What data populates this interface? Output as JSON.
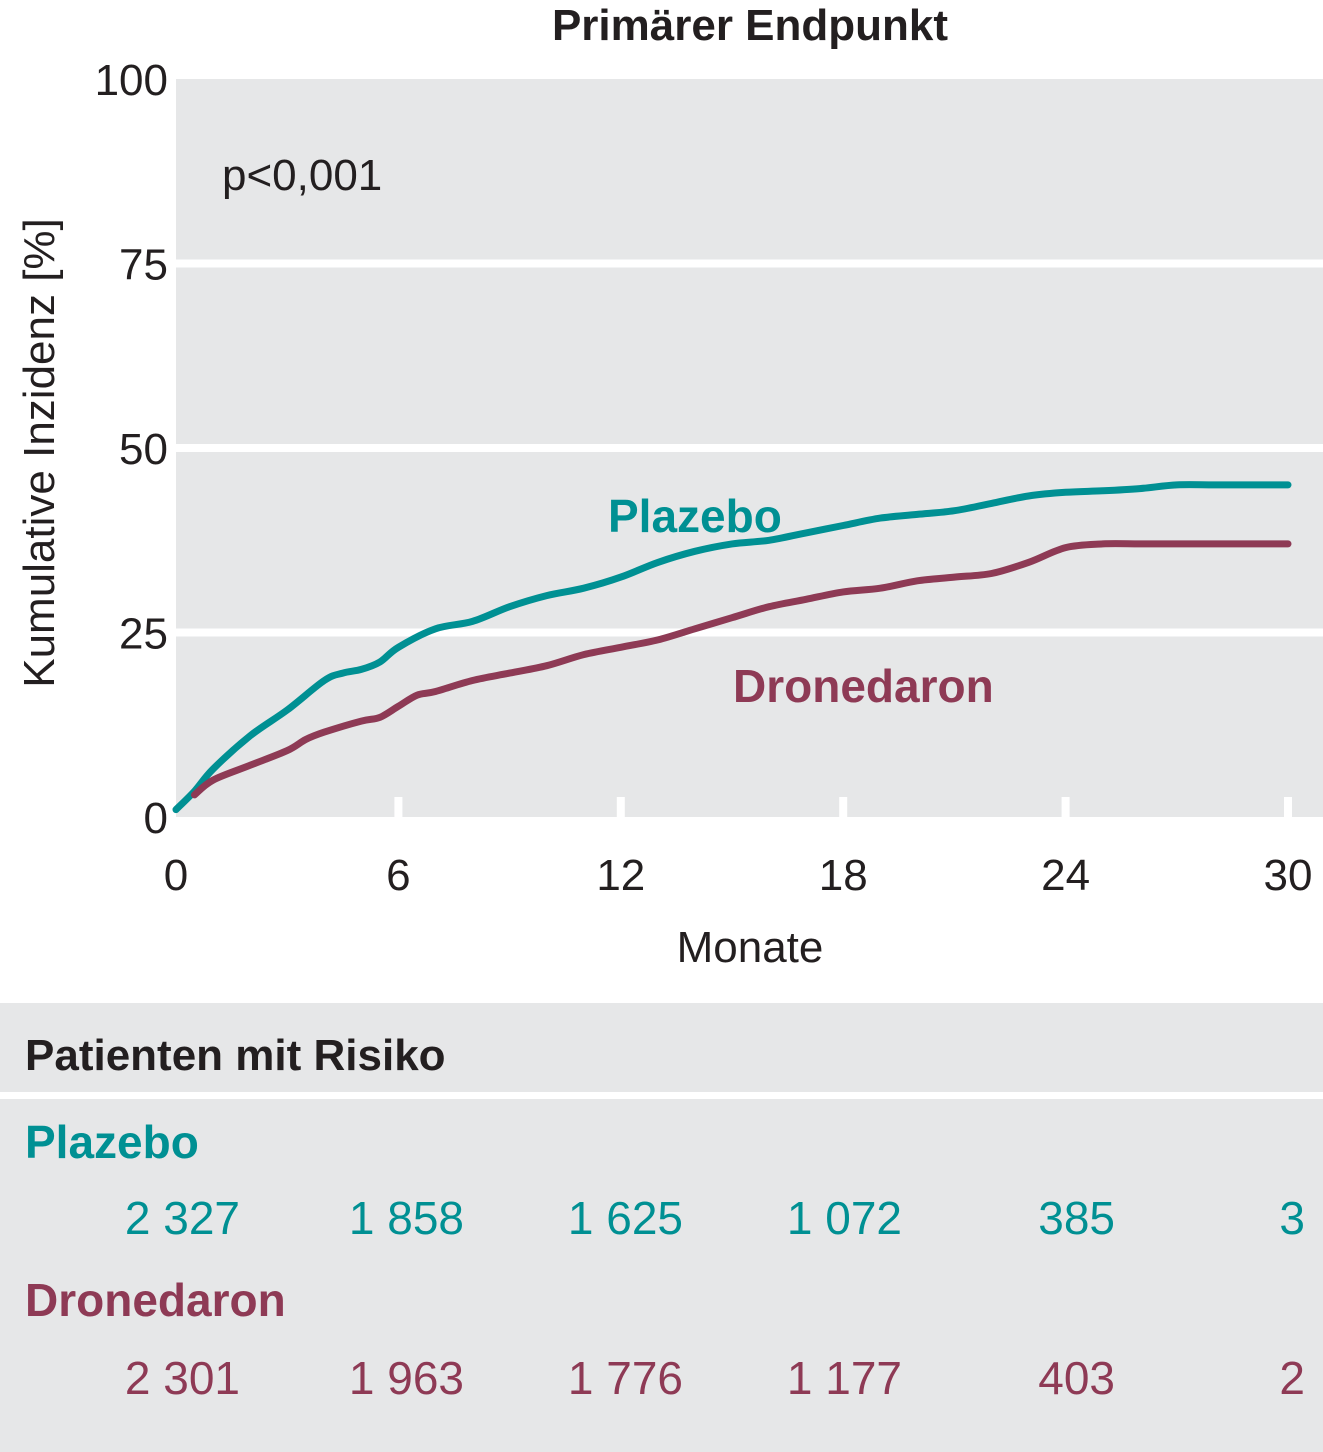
{
  "chart_data": {
    "type": "line",
    "title": "Primärer Endpunkt",
    "xlabel": "Monate",
    "ylabel": "Kumulative Inzidenz [%]",
    "xlim": [
      0,
      30
    ],
    "ylim": [
      0,
      100
    ],
    "xticks": [
      0,
      6,
      12,
      18,
      24,
      30
    ],
    "yticks": [
      0,
      25,
      50,
      75,
      100
    ],
    "annotation": "p<0,001",
    "grid": true,
    "series": [
      {
        "name": "Plazebo",
        "color": "#009093",
        "points": [
          [
            0,
            1
          ],
          [
            0.5,
            3.5
          ],
          [
            1,
            6.5
          ],
          [
            2,
            11
          ],
          [
            3,
            14.5
          ],
          [
            4,
            18.5
          ],
          [
            4.5,
            19.5
          ],
          [
            5,
            20
          ],
          [
            5.5,
            21
          ],
          [
            6,
            23
          ],
          [
            7,
            25.5
          ],
          [
            8,
            26.5
          ],
          [
            9,
            28.5
          ],
          [
            10,
            30
          ],
          [
            11,
            31
          ],
          [
            12,
            32.5
          ],
          [
            13,
            34.5
          ],
          [
            14,
            36
          ],
          [
            15,
            37
          ],
          [
            16,
            37.5
          ],
          [
            17,
            38.5
          ],
          [
            18,
            39.5
          ],
          [
            19,
            40.5
          ],
          [
            20,
            41
          ],
          [
            21,
            41.5
          ],
          [
            22,
            42.5
          ],
          [
            23,
            43.5
          ],
          [
            24,
            44
          ],
          [
            25,
            44.2
          ],
          [
            26,
            44.5
          ],
          [
            27,
            45
          ],
          [
            28,
            45
          ],
          [
            29,
            45
          ],
          [
            30,
            45
          ]
        ]
      },
      {
        "name": "Dronedaron",
        "color": "#8e3a55",
        "points": [
          [
            0.5,
            3
          ],
          [
            1,
            5
          ],
          [
            2,
            7
          ],
          [
            3,
            9
          ],
          [
            3.5,
            10.5
          ],
          [
            4,
            11.5
          ],
          [
            5,
            13
          ],
          [
            5.5,
            13.5
          ],
          [
            6,
            15
          ],
          [
            6.5,
            16.5
          ],
          [
            7,
            17
          ],
          [
            8,
            18.5
          ],
          [
            9,
            19.5
          ],
          [
            10,
            20.5
          ],
          [
            11,
            22
          ],
          [
            12,
            23
          ],
          [
            13,
            24
          ],
          [
            14,
            25.5
          ],
          [
            15,
            27
          ],
          [
            16,
            28.5
          ],
          [
            17,
            29.5
          ],
          [
            18,
            30.5
          ],
          [
            19,
            31
          ],
          [
            20,
            32
          ],
          [
            21,
            32.5
          ],
          [
            22,
            33
          ],
          [
            23,
            34.5
          ],
          [
            24,
            36.5
          ],
          [
            25,
            37
          ],
          [
            26,
            37
          ],
          [
            27,
            37
          ],
          [
            28,
            37
          ],
          [
            29,
            37
          ],
          [
            30,
            37
          ]
        ]
      }
    ]
  },
  "labels": {
    "plazebo": "Plazebo",
    "dronedaron": "Dronedaron"
  },
  "risk_table": {
    "title": "Patienten mit Risiko",
    "groups": [
      {
        "name": "Plazebo",
        "color": "#009093",
        "values": [
          "2 327",
          "1 858",
          "1 625",
          "1 072",
          "385",
          "3"
        ]
      },
      {
        "name": "Dronedaron",
        "color": "#8e3a55",
        "values": [
          "2 301",
          "1 963",
          "1 776",
          "1 177",
          "403",
          "2"
        ]
      }
    ]
  }
}
